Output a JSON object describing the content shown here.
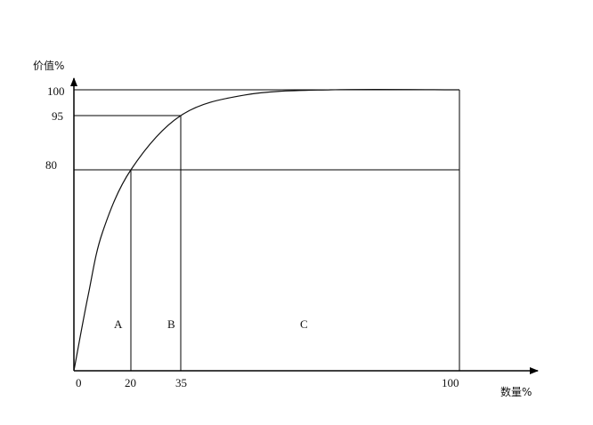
{
  "chart_data": {
    "type": "line",
    "title": "",
    "xlabel": "数量%",
    "ylabel": "价值%",
    "xlim": [
      0,
      100
    ],
    "ylim": [
      0,
      100
    ],
    "x_ticks": [
      "0",
      "20",
      "35",
      "100"
    ],
    "y_ticks": [
      "100",
      "95",
      "80"
    ],
    "grid": false,
    "series": [
      {
        "x": [
          0,
          5,
          10,
          20,
          35,
          50,
          70,
          100
        ],
        "y": [
          0,
          30,
          55,
          80,
          95,
          99,
          100,
          100
        ]
      }
    ],
    "reference_lines": [
      {
        "y": 100,
        "x_to": 100
      },
      {
        "y": 95,
        "x_to": 35
      },
      {
        "y": 80,
        "x_to": 100
      },
      {
        "x": 20,
        "y_to": 80
      },
      {
        "x": 35,
        "y_to": 95
      },
      {
        "x": 100,
        "y_to": 100
      }
    ],
    "regions": [
      {
        "label": "A",
        "x": 20
      },
      {
        "label": "B",
        "x": 35
      },
      {
        "label": "C",
        "x": 100
      }
    ],
    "line_color": "#111111"
  }
}
